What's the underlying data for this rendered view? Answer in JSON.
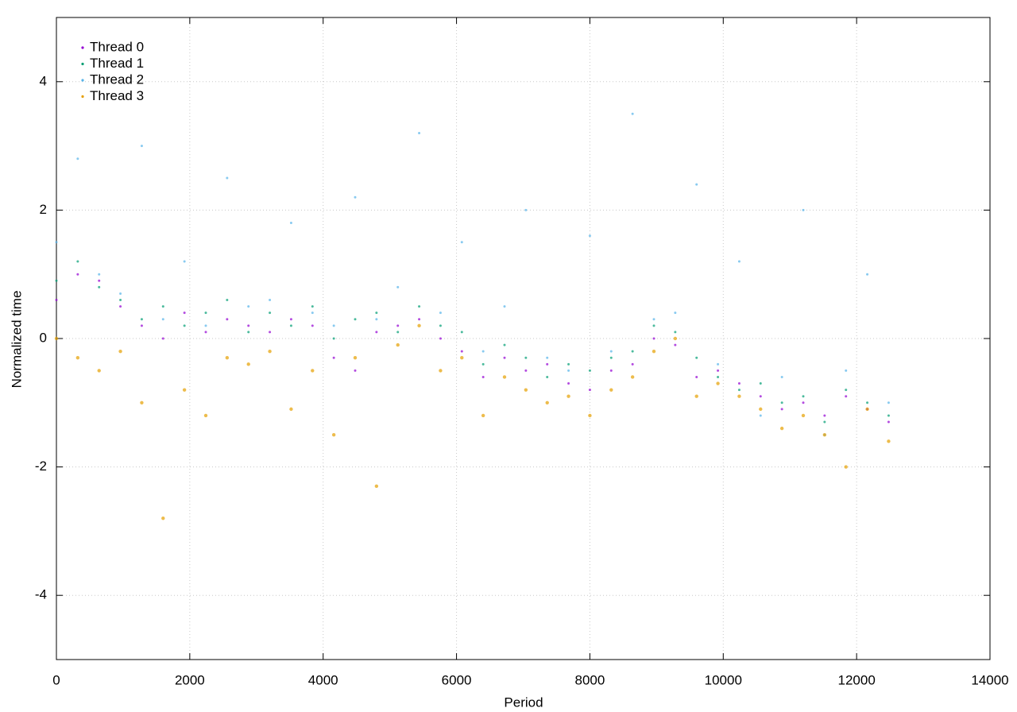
{
  "chart_data": {
    "type": "scatter",
    "x_label": "Period",
    "y_label": "Normalized time",
    "x": [
      0,
      320,
      640,
      960,
      1280,
      1600,
      1920,
      2240,
      2560,
      2880,
      3200,
      3520,
      3840,
      4160,
      4480,
      4800,
      5120,
      5440,
      5760,
      6080,
      6400,
      6720,
      7040,
      7360,
      7680,
      8000,
      8320,
      8640,
      8960,
      9280,
      9600,
      9920,
      10240,
      10560,
      10880,
      11200,
      11520,
      11840,
      12160,
      12480
    ],
    "series": [
      {
        "name": "Thread 0",
        "color": "#9400d3",
        "values": [
          0.6,
          1.0,
          0.9,
          0.5,
          0.2,
          0.0,
          0.4,
          0.1,
          0.3,
          0.2,
          0.1,
          0.3,
          0.2,
          -0.3,
          -0.5,
          0.1,
          0.2,
          0.3,
          0.0,
          -0.2,
          -0.6,
          -0.3,
          -0.5,
          -0.4,
          -0.7,
          -0.8,
          -0.5,
          -0.4,
          0.0,
          -0.1,
          -0.6,
          -0.5,
          -0.7,
          -0.9,
          -1.1,
          -1.0,
          -1.2,
          -0.9,
          -1.1,
          -1.3
        ]
      },
      {
        "name": "Thread 1",
        "color": "#009e73",
        "values": [
          0.9,
          1.2,
          0.8,
          0.6,
          0.3,
          0.5,
          0.2,
          0.4,
          0.6,
          0.1,
          0.4,
          0.2,
          0.5,
          0.0,
          0.3,
          0.4,
          0.1,
          0.5,
          0.2,
          0.1,
          -0.4,
          -0.1,
          -0.3,
          -0.6,
          -0.4,
          -0.5,
          -0.3,
          -0.2,
          0.2,
          0.1,
          -0.3,
          -0.6,
          -0.8,
          -0.7,
          -1.0,
          -0.9,
          -1.3,
          -0.8,
          -1.0,
          -1.2
        ]
      },
      {
        "name": "Thread 2",
        "color": "#56b4e9",
        "values": [
          1.5,
          2.8,
          1.0,
          0.7,
          3.0,
          0.3,
          1.2,
          0.2,
          2.5,
          0.5,
          0.6,
          1.8,
          0.4,
          0.2,
          2.2,
          0.3,
          0.8,
          3.2,
          0.4,
          1.5,
          -0.2,
          0.5,
          2.0,
          -0.3,
          -0.5,
          1.6,
          -0.2,
          3.5,
          0.3,
          0.4,
          2.4,
          -0.4,
          1.2,
          -1.2,
          -0.6,
          2.0,
          -1.5,
          -0.5,
          1.0,
          -1.0
        ]
      },
      {
        "name": "Thread 3",
        "color": "#e69f00",
        "values": [
          0.0,
          -0.3,
          -0.5,
          -0.2,
          -1.0,
          -2.8,
          -0.8,
          -1.2,
          -0.3,
          -0.4,
          -0.2,
          -1.1,
          -0.5,
          -1.5,
          -0.3,
          -2.3,
          -0.1,
          0.2,
          -0.5,
          -0.3,
          -1.2,
          -0.6,
          -0.8,
          -1.0,
          -0.9,
          -1.2,
          -0.8,
          -0.6,
          -0.2,
          0.0,
          -0.9,
          -0.7,
          -0.9,
          -1.1,
          -1.4,
          -1.2,
          -1.5,
          -2.0,
          -1.1,
          -1.6
        ]
      }
    ],
    "xlim": [
      0,
      14000
    ],
    "xticks": [
      0,
      2000,
      4000,
      6000,
      8000,
      10000,
      12000,
      14000
    ],
    "ylim": [
      -5,
      5
    ],
    "yticks": [
      -4,
      -2,
      0,
      2,
      4
    ],
    "grid": true,
    "legend": "top-left"
  }
}
